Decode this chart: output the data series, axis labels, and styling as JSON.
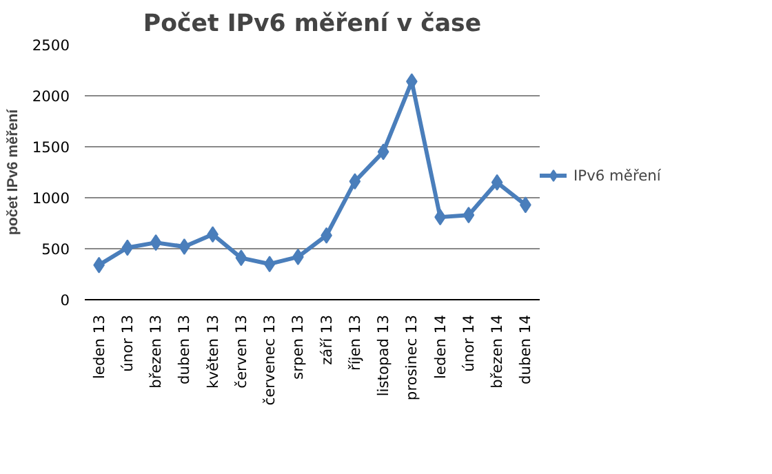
{
  "chart_data": {
    "type": "line",
    "title": "Počet IPv6 měření v čase",
    "ylabel": "počet IPv6 měření",
    "categories": [
      "leden 13",
      "únor 13",
      "březen 13",
      "duben 13",
      "květen 13",
      "červen 13",
      "červenec 13",
      "srpen 13",
      "září 13",
      "říjen 13",
      "listopad 13",
      "prosinec 13",
      "leden 14",
      "únor 14",
      "březen 14",
      "duben 14"
    ],
    "series": [
      {
        "name": "IPv6 měření",
        "color": "#4a7ebb",
        "values": [
          340,
          510,
          560,
          520,
          640,
          410,
          350,
          420,
          630,
          1160,
          1450,
          2140,
          810,
          830,
          1150,
          930
        ]
      }
    ],
    "ylim": [
      0,
      2500
    ],
    "yticks": [
      0,
      500,
      1000,
      1500,
      2000,
      2500
    ],
    "grid": "y",
    "legend": "right",
    "marker": "diamond",
    "line_style": "solid"
  }
}
